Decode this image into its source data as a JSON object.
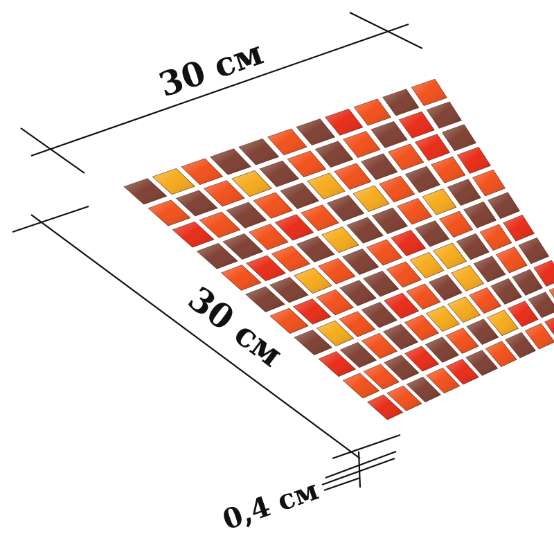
{
  "dimensions": {
    "width_label": "30 см",
    "length_label": "30 см",
    "thickness_label": "0,4 см"
  },
  "mosaic": {
    "rows": 11,
    "cols": 11,
    "colors": {
      "R": "#e8240f",
      "O": "#f24a12",
      "B": "#7a3a2c",
      "Y": "#f6a814"
    },
    "pattern": [
      "BYOBBOBROBO",
      "OBOYBOBOBRB",
      "ROBOBYOBORB",
      "BBOROBYOBOR",
      "OROBYBBOYBO",
      "BBYOBORBOBB",
      "OROBBOYYBOR",
      "BYOBROBYBOB",
      "RBOBOYYOBBR",
      "OOBRBOBYRBO",
      "ROBORBOBORB"
    ]
  }
}
